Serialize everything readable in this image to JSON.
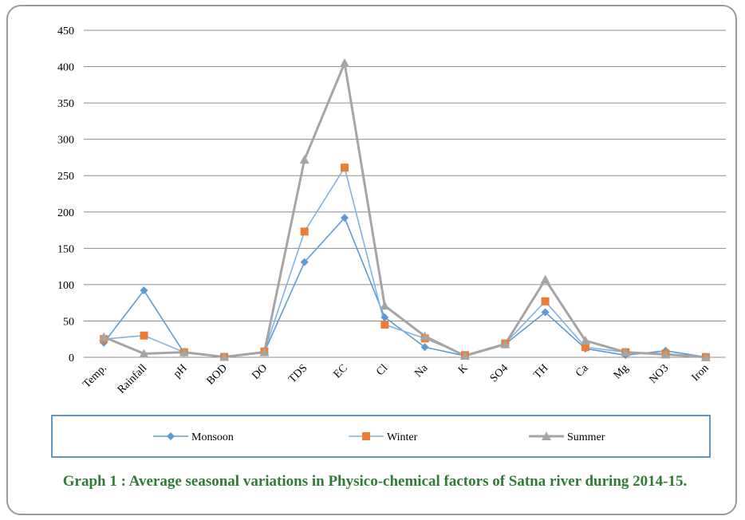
{
  "chart_data": {
    "type": "line",
    "categories": [
      "Temp.",
      "Rainfall",
      "pH",
      "BOD",
      "DO",
      "TDS",
      "EC",
      "Cl",
      "Na",
      "K",
      "SO4",
      "TH",
      "Ca",
      "Mg",
      "NO3",
      "Iron"
    ],
    "series": [
      {
        "name": "Monsoon",
        "color": "#5b9bd5",
        "line_color": "#5b9bd5",
        "marker": "diamond",
        "values": [
          20,
          92,
          6,
          1,
          7,
          131,
          192,
          55,
          14,
          2,
          18,
          62,
          12,
          3,
          9,
          0.3
        ]
      },
      {
        "name": "Winter",
        "color": "#ed7d31",
        "line_color": "#7fb2e3",
        "marker": "square",
        "values": [
          25,
          30,
          7,
          0.5,
          8,
          173,
          261,
          45,
          26,
          3,
          19,
          77,
          14,
          7,
          5,
          0.3
        ]
      },
      {
        "name": "Summer",
        "color": "#a5a5a5",
        "line_color": "#a5a5a5",
        "marker": "triangle",
        "values": [
          28,
          5,
          7,
          0.5,
          7,
          272,
          405,
          71,
          29,
          2,
          18,
          107,
          23,
          7,
          4,
          0.3
        ]
      }
    ],
    "ylim": [
      0,
      450
    ],
    "yticks": [
      0,
      50,
      100,
      150,
      200,
      250,
      300,
      350,
      400,
      450
    ],
    "grid": true,
    "caption": "Graph 1 :  Average seasonal variations in Physico-chemical factors of Satna river during 2014-15."
  }
}
